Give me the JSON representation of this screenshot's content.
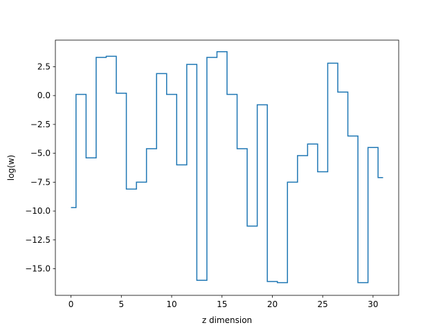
{
  "chart_data": {
    "type": "line",
    "drawstyle": "steps-mid",
    "title": "",
    "xlabel": "z dimension",
    "ylabel": "log(w)",
    "xlim": [
      -1.55,
      32.55
    ],
    "ylim": [
      -17.3,
      4.8
    ],
    "xticks": [
      0,
      5,
      10,
      15,
      20,
      25,
      30
    ],
    "xtick_labels": [
      "0",
      "5",
      "10",
      "15",
      "20",
      "25",
      "30"
    ],
    "yticks": [
      2.5,
      0.0,
      -2.5,
      -5.0,
      -7.5,
      -10.0,
      -12.5,
      -15.0
    ],
    "ytick_labels": [
      "2.5",
      "0.0",
      "−2.5",
      "−5.0",
      "−7.5",
      "−10.0",
      "−12.5",
      "−15.0"
    ],
    "grid": false,
    "series": [
      {
        "color": "#1f77b4",
        "x": [
          0,
          1,
          2,
          3,
          4,
          5,
          6,
          7,
          8,
          9,
          10,
          11,
          12,
          13,
          14,
          15,
          16,
          17,
          18,
          19,
          20,
          21,
          22,
          23,
          24,
          25,
          26,
          27,
          28,
          29,
          30,
          31
        ],
        "values": [
          -9.7,
          0.1,
          -5.4,
          3.3,
          3.4,
          0.2,
          -8.1,
          -7.5,
          -4.6,
          1.9,
          0.1,
          -6.0,
          2.7,
          -16.0,
          3.3,
          3.8,
          0.1,
          -4.6,
          -11.3,
          -0.8,
          -16.1,
          -16.2,
          -7.5,
          -5.2,
          -4.2,
          -6.6,
          2.8,
          0.3,
          -3.5,
          -16.2,
          -4.5,
          -7.1
        ]
      }
    ]
  }
}
